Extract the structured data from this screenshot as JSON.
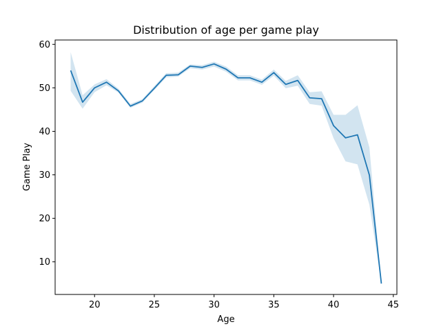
{
  "chart_data": {
    "type": "line",
    "title": "Distribution of age per game play",
    "xlabel": "Age",
    "ylabel": "Game Play",
    "xlim": [
      16.7,
      45.3
    ],
    "ylim": [
      2.5,
      61.0
    ],
    "xticks": [
      20,
      25,
      30,
      35,
      40,
      45
    ],
    "yticks": [
      10,
      20,
      30,
      40,
      50,
      60
    ],
    "grid": false,
    "legend": "none",
    "line_color": "#1f77b4",
    "band_color": "#1f77b4",
    "series": [
      {
        "x": [
          18,
          19,
          20,
          21,
          22,
          23,
          24,
          25,
          26,
          27,
          28,
          29,
          30,
          31,
          32,
          33,
          34,
          35,
          36,
          37,
          38,
          39,
          40,
          41,
          42,
          43,
          44
        ],
        "values": [
          54.0,
          46.7,
          50.0,
          51.3,
          49.3,
          45.8,
          47.0,
          49.9,
          52.9,
          53.0,
          55.0,
          54.7,
          55.5,
          54.3,
          52.3,
          52.3,
          51.3,
          53.5,
          50.8,
          51.7,
          47.7,
          47.5,
          41.3,
          38.5,
          39.2,
          29.9,
          5.0
        ],
        "ci_low": [
          49.3,
          45.2,
          49.0,
          50.6,
          48.9,
          45.4,
          46.6,
          49.5,
          52.4,
          52.6,
          54.5,
          54.2,
          54.9,
          53.7,
          51.7,
          51.7,
          50.7,
          52.8,
          49.9,
          50.5,
          46.3,
          45.9,
          38.4,
          33.1,
          32.4,
          23.1,
          5.0
        ],
        "ci_high": [
          58.2,
          48.3,
          50.8,
          52.0,
          49.8,
          46.3,
          47.4,
          50.4,
          53.4,
          53.5,
          55.4,
          55.2,
          56.0,
          54.9,
          52.9,
          52.9,
          51.9,
          54.2,
          51.6,
          52.9,
          49.0,
          49.2,
          43.8,
          43.8,
          46.0,
          36.3,
          5.0
        ]
      }
    ]
  }
}
